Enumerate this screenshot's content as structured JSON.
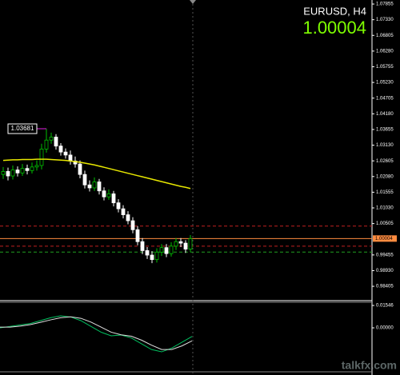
{
  "chart_data": [
    {
      "type": "candlestick",
      "title": "EURUSD, H4",
      "last_price": 1.00004,
      "annotation": "1.03681",
      "ylim": [
        0.983,
        1.0799
      ],
      "yticks": [
        1.07855,
        {
          "value": 1.0733,
          "label": "1.07330"
        },
        1.06805,
        {
          "value": 1.0628,
          "label": "1.06280"
        },
        1.05755,
        {
          "value": 1.0523,
          "label": "1.05230"
        },
        1.04705,
        {
          "value": 1.0418,
          "label": "1.04180"
        },
        1.03655,
        {
          "value": 1.0313,
          "label": "1.03130"
        },
        1.02605,
        {
          "value": 1.0208,
          "label": "1.02080"
        },
        1.01555,
        {
          "value": 1.0103,
          "label": "1.01030"
        },
        1.00505,
        0.99455,
        {
          "value": 0.9893,
          "label": "0.98930"
        },
        0.98405
      ],
      "open": [
        1.0215,
        1.0225,
        1.021,
        1.023,
        1.022,
        1.0235,
        1.0228,
        1.024,
        1.0245,
        1.03,
        1.033,
        1.034,
        1.031,
        1.029,
        1.028,
        1.026,
        1.025,
        1.0215,
        1.018,
        1.017,
        1.019,
        1.016,
        1.014,
        1.015,
        1.012,
        1.01,
        1.008,
        1.006,
        1.003,
        0.999,
        0.996,
        0.9945,
        0.993,
        0.9955,
        0.997,
        0.995,
        0.9975,
        0.999,
        0.9985,
        0.9965
      ],
      "high": [
        1.024,
        1.0238,
        1.0245,
        1.0242,
        1.025,
        1.0248,
        1.0255,
        1.0262,
        1.0318,
        1.0368,
        1.0355,
        1.035,
        1.032,
        1.0302,
        1.0295,
        1.0275,
        1.0262,
        1.0228,
        1.0195,
        1.0205,
        1.02,
        1.0172,
        1.0165,
        1.016,
        1.0132,
        1.0112,
        1.0092,
        1.0072,
        1.0042,
        1.0002,
        0.9972,
        0.9958,
        0.9968,
        0.9982,
        0.9982,
        0.9988,
        1.0002,
        1.0002,
        0.9995,
        1.0012
      ],
      "low": [
        1.02,
        1.0195,
        1.0198,
        1.0208,
        1.021,
        1.0215,
        1.0218,
        1.0228,
        1.0232,
        1.0288,
        1.0318,
        1.0298,
        1.0278,
        1.0268,
        1.0248,
        1.0238,
        1.0202,
        1.0168,
        1.0158,
        1.016,
        1.0148,
        1.0128,
        1.013,
        1.0108,
        1.0088,
        1.0068,
        1.0048,
        1.0018,
        0.9978,
        0.9948,
        0.9932,
        0.9918,
        0.992,
        0.9942,
        0.9938,
        0.994,
        0.9962,
        0.9972,
        0.9952,
        0.9955
      ],
      "close": [
        1.0225,
        1.021,
        1.023,
        1.022,
        1.0235,
        1.0228,
        1.024,
        1.0245,
        1.03,
        1.033,
        1.034,
        1.031,
        1.029,
        1.028,
        1.026,
        1.025,
        1.0215,
        1.018,
        1.017,
        1.019,
        1.016,
        1.014,
        1.015,
        1.012,
        1.01,
        1.008,
        1.006,
        1.003,
        0.999,
        0.996,
        0.9945,
        0.993,
        0.9955,
        0.997,
        0.995,
        0.9975,
        0.999,
        0.9985,
        0.9965,
        1.0
      ],
      "ma": {
        "color": "#e8e800",
        "values": [
          1.0262,
          1.0263,
          1.0264,
          1.0264,
          1.0265,
          1.0265,
          1.0265,
          1.0266,
          1.0266,
          1.0266,
          1.0265,
          1.0264,
          1.0263,
          1.0262,
          1.026,
          1.0258,
          1.0256,
          1.0253,
          1.025,
          1.0247,
          1.0243,
          1.0239,
          1.0235,
          1.0231,
          1.0227,
          1.0223,
          1.0219,
          1.0215,
          1.0211,
          1.0207,
          1.0203,
          1.0199,
          1.0195,
          1.0191,
          1.0187,
          1.0183,
          1.0179,
          1.0175,
          1.0172,
          1.0168
        ]
      },
      "levels": [
        {
          "value": 1.0042,
          "color": "#c02020"
        },
        {
          "value": 0.9975,
          "color": "#c02020"
        },
        {
          "value": 0.9955,
          "color": "#20a020"
        }
      ],
      "bull_color": "#00c000",
      "bear_color": "#ffffff",
      "price_color": "#ff8c40"
    },
    {
      "type": "line",
      "ylim": [
        -0.0304,
        0.0177
      ],
      "yticks": [
        0.01546,
        {
          "value": 0,
          "label": "0.00000"
        }
      ],
      "series": [
        {
          "color": "#00c060",
          "values": [
            0.0,
            0.001,
            0.002,
            0.003,
            0.005,
            0.007,
            0.0083,
            0.0075,
            0.005,
            0.001,
            -0.003,
            -0.0055,
            -0.005,
            -0.007,
            -0.011,
            -0.015,
            -0.0166,
            -0.014,
            -0.01,
            -0.006
          ]
        },
        {
          "color": "#e0e0e0",
          "values": [
            0.0005,
            0.0005,
            0.0012,
            0.0022,
            0.0038,
            0.0055,
            0.007,
            0.0076,
            0.0066,
            0.004,
            0.0005,
            -0.003,
            -0.0048,
            -0.0058,
            -0.0085,
            -0.012,
            -0.015,
            -0.015,
            -0.0125,
            -0.009
          ]
        }
      ]
    },
    {
      "type": "watermark",
      "text": "talkfx.com"
    }
  ]
}
